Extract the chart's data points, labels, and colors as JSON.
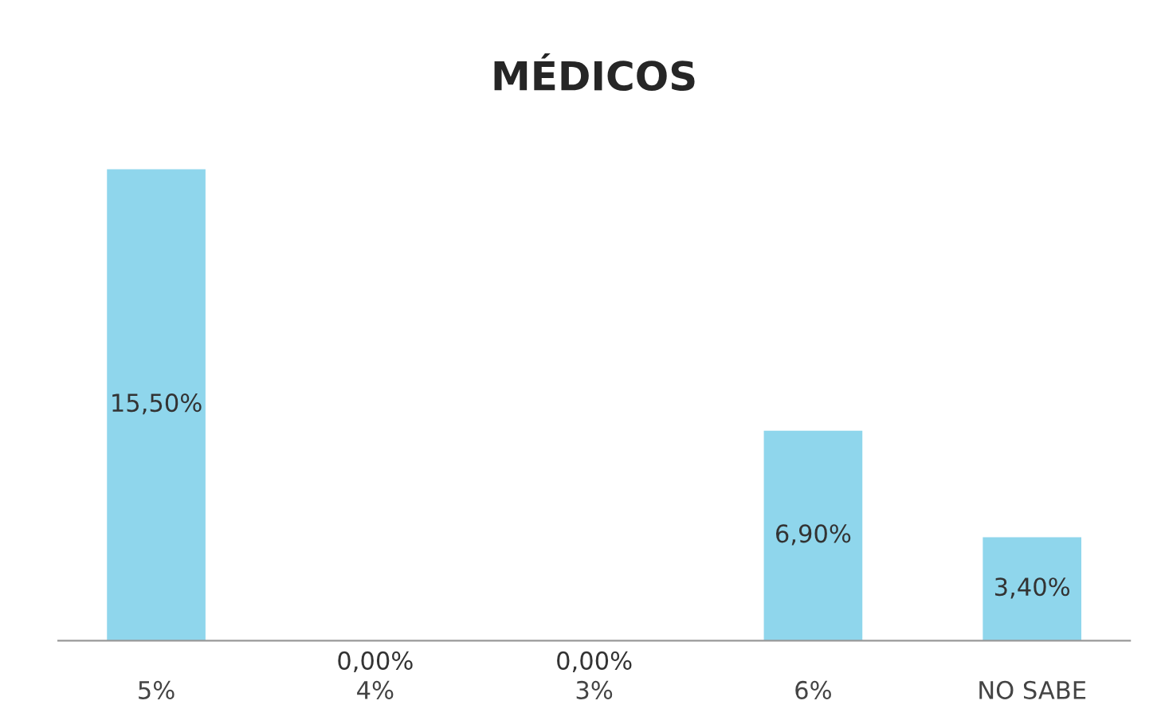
{
  "chart_data": {
    "type": "bar",
    "title": "MÉDICOS",
    "categories": [
      "5%",
      "4%",
      "3%",
      "6%",
      "NO SABE"
    ],
    "values": [
      15.5,
      0,
      0,
      6.9,
      3.4
    ],
    "value_labels": [
      "15,50%",
      "0,00%",
      "0,00%",
      "6,90%",
      "3,40%"
    ],
    "color": "#8fd6ec",
    "tick_labels": "x",
    "grid": false
  }
}
